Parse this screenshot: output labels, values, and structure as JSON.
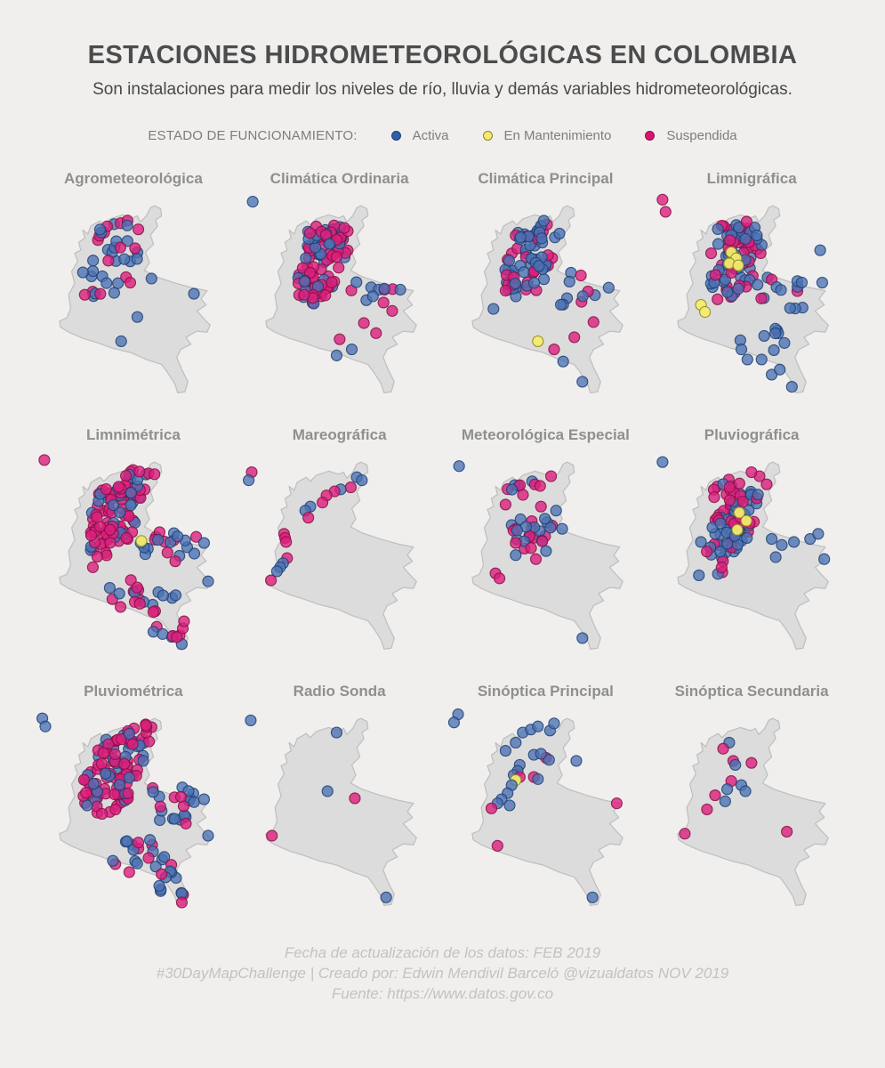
{
  "page": {
    "background": "#f0efee"
  },
  "header": {
    "title": "ESTACIONES HIDROMETEOROLÓGICAS EN COLOMBIA",
    "subtitle": "Son instalaciones para medir los niveles de río, lluvia y demás variables hidrometeorológicas."
  },
  "legend": {
    "label": "ESTADO DE FUNCIONAMIENTO:",
    "items": [
      {
        "key": "a",
        "label": "Activa",
        "color": "#2d5fa4",
        "border": "#1f3f73"
      },
      {
        "key": "m",
        "label": "En Mantenimiento",
        "color": "#f3eb6e",
        "border": "#8e851d"
      },
      {
        "key": "s",
        "label": "Suspendida",
        "color": "#dc1273",
        "border": "#861043"
      }
    ]
  },
  "status_colors": {
    "a": {
      "fill": "#4c72b4",
      "stroke": "#1f3f73",
      "opacity": 0.78
    },
    "m": {
      "fill": "#f3eb6e",
      "stroke": "#8e851d",
      "opacity": 0.95
    },
    "s": {
      "fill": "#dc1f7d",
      "stroke": "#861043",
      "opacity": 0.8
    }
  },
  "map": {
    "fill": "#dcdcdc",
    "stroke": "#bfbfbf"
  },
  "footer": {
    "lines": [
      "Fecha de actualización de los datos: FEB 2019",
      "#30DayMapChallenge | Creado por: Edwin Mendivil Barceló @vizualdatos NOV 2019",
      "Fuente: https://www.datos.gov.co"
    ]
  },
  "chart_data": {
    "type": "scatter",
    "title": "ESTACIONES HIDROMETEOROLÓGICAS EN COLOMBIA",
    "note": "Small-multiples map of Colombia; station positions in map viewBox units (0-200 x, 0-220 y). Status: a=Activa, m=En Mantenimiento, s=Suspendida. Dense regions encoded as clusters [cx,cy,rx,ry,n,probActiva,probMantenimiento,shear].",
    "legend_position": "top",
    "facets": [
      {
        "label": "Agrometeorológica",
        "clusters": [
          [
            78,
            72,
            26,
            40,
            30,
            0.62,
            0,
            -0.3
          ],
          [
            86,
            38,
            20,
            11,
            7,
            0.6,
            0,
            0
          ]
        ],
        "points": [
          [
            160,
            103,
            "a"
          ],
          [
            104,
            126,
            "a"
          ],
          [
            88,
            150,
            "a"
          ],
          [
            118,
            88,
            "a"
          ],
          [
            52,
            104,
            "s"
          ],
          [
            97,
            92,
            "s"
          ]
        ]
      },
      {
        "label": "Climática Ordinaria",
        "clusters": [
          [
            82,
            74,
            24,
            36,
            68,
            0.35,
            0,
            -0.3
          ],
          [
            88,
            44,
            22,
            12,
            20,
            0.4,
            0,
            0
          ],
          [
            70,
            104,
            17,
            16,
            16,
            0.4,
            0,
            0
          ],
          [
            132,
            104,
            26,
            16,
            10,
            0.6,
            0,
            0
          ]
        ],
        "points": [
          [
            14,
            12,
            "a"
          ],
          [
            100,
            148,
            "s"
          ],
          [
            112,
            158,
            "a"
          ],
          [
            124,
            132,
            "s"
          ],
          [
            97,
            164,
            "a"
          ],
          [
            136,
            142,
            "s"
          ],
          [
            152,
            120,
            "s"
          ],
          [
            160,
            99,
            "a"
          ]
        ]
      },
      {
        "label": "Climática Principal",
        "clusters": [
          [
            85,
            72,
            24,
            36,
            58,
            0.75,
            0,
            -0.3
          ],
          [
            90,
            42,
            24,
            12,
            18,
            0.7,
            0,
            0
          ],
          [
            122,
            100,
            28,
            18,
            10,
            0.8,
            0,
            0
          ]
        ],
        "points": [
          [
            92,
            150,
            "m"
          ],
          [
            136,
            190,
            "a"
          ],
          [
            128,
            146,
            "s"
          ],
          [
            147,
            131,
            "s"
          ],
          [
            162,
            97,
            "a"
          ],
          [
            108,
            158,
            "s"
          ],
          [
            117,
            170,
            "a"
          ],
          [
            60,
            100,
            "s"
          ],
          [
            48,
            118,
            "a"
          ]
        ]
      },
      {
        "label": "Limnigráfica",
        "clusters": [
          [
            82,
            72,
            26,
            38,
            72,
            0.62,
            0,
            -0.3
          ],
          [
            88,
            42,
            22,
            12,
            16,
            0.55,
            0,
            0
          ],
          [
            132,
            104,
            32,
            20,
            14,
            0.85,
            0,
            0
          ],
          [
            106,
            148,
            28,
            14,
            8,
            0.7,
            0,
            0
          ]
        ],
        "points": [
          [
            80,
            62,
            "m"
          ],
          [
            85,
            68,
            "m"
          ],
          [
            78,
            73,
            "m"
          ],
          [
            87,
            75,
            "m"
          ],
          [
            50,
            114,
            "m"
          ],
          [
            54,
            121,
            "m"
          ],
          [
            12,
            10,
            "s"
          ],
          [
            15,
            22,
            "s"
          ],
          [
            120,
            183,
            "a"
          ],
          [
            96,
            168,
            "a"
          ],
          [
            168,
            60,
            "a"
          ],
          [
            170,
            92,
            "a"
          ],
          [
            110,
            168,
            "a"
          ],
          [
            128,
            178,
            "a"
          ],
          [
            140,
            195,
            "a"
          ],
          [
            90,
            158,
            "a"
          ]
        ]
      },
      {
        "label": "Limnimétrica",
        "clusters": [
          [
            80,
            70,
            26,
            40,
            82,
            0.3,
            0,
            -0.3
          ],
          [
            102,
            36,
            20,
            13,
            16,
            0.35,
            0,
            0
          ],
          [
            134,
            98,
            32,
            17,
            20,
            0.55,
            0,
            0
          ],
          [
            108,
            148,
            38,
            18,
            20,
            0.5,
            0,
            0
          ],
          [
            136,
            180,
            17,
            13,
            8,
            0.6,
            0,
            0
          ]
        ],
        "points": [
          [
            12,
            14,
            "s"
          ],
          [
            108,
            94,
            "m"
          ],
          [
            121,
            28,
            "s"
          ],
          [
            148,
            196,
            "a"
          ],
          [
            143,
            189,
            "s"
          ],
          [
            170,
            96,
            "a"
          ],
          [
            174,
            134,
            "a"
          ],
          [
            60,
            120,
            "s"
          ]
        ]
      },
      {
        "label": "Mareográfica",
        "clusters": [],
        "points": [
          [
            13,
            26,
            "s"
          ],
          [
            10,
            34,
            "a"
          ],
          [
            117,
            31,
            "a"
          ],
          [
            122,
            34,
            "a"
          ],
          [
            111,
            41,
            "s"
          ],
          [
            101,
            43,
            "a"
          ],
          [
            95,
            45,
            "s"
          ],
          [
            87,
            49,
            "s"
          ],
          [
            83,
            56,
            "s"
          ],
          [
            71,
            60,
            "a"
          ],
          [
            66,
            64,
            "a"
          ],
          [
            69,
            71,
            "s"
          ],
          [
            45,
            87,
            "s"
          ],
          [
            46,
            91,
            "s"
          ],
          [
            47,
            95,
            "s"
          ],
          [
            48,
            111,
            "s"
          ],
          [
            44,
            116,
            "a"
          ],
          [
            41,
            120,
            "a"
          ],
          [
            38,
            124,
            "a"
          ],
          [
            32,
            133,
            "s"
          ]
        ]
      },
      {
        "label": "Meteorológica Especial",
        "clusters": [
          [
            84,
            84,
            22,
            18,
            26,
            0.5,
            0,
            -0.2
          ],
          [
            80,
            44,
            20,
            12,
            9,
            0.55,
            0,
            0
          ]
        ],
        "points": [
          [
            14,
            20,
            "a"
          ],
          [
            105,
            30,
            "s"
          ],
          [
            95,
            60,
            "s"
          ],
          [
            110,
            64,
            "a"
          ],
          [
            116,
            82,
            "a"
          ],
          [
            60,
            58,
            "s"
          ],
          [
            50,
            126,
            "s"
          ],
          [
            54,
            131,
            "s"
          ],
          [
            136,
            190,
            "a"
          ],
          [
            100,
            104,
            "a"
          ],
          [
            70,
            108,
            "a"
          ],
          [
            90,
            112,
            "s"
          ]
        ]
      },
      {
        "label": "Pluviográfica",
        "clusters": [
          [
            82,
            78,
            20,
            30,
            52,
            0.75,
            0,
            -0.3
          ],
          [
            76,
            44,
            18,
            12,
            14,
            0.3,
            0,
            0
          ],
          [
            96,
            54,
            15,
            10,
            10,
            0.45,
            0,
            0
          ],
          [
            66,
            112,
            15,
            15,
            10,
            0.5,
            0,
            0
          ]
        ],
        "points": [
          [
            88,
            66,
            "m"
          ],
          [
            95,
            74,
            "m"
          ],
          [
            86,
            83,
            "m"
          ],
          [
            120,
            92,
            "a"
          ],
          [
            130,
            98,
            "a"
          ],
          [
            142,
            95,
            "a"
          ],
          [
            158,
            92,
            "a"
          ],
          [
            166,
            87,
            "a"
          ],
          [
            124,
            110,
            "a"
          ],
          [
            50,
            95,
            "a"
          ],
          [
            48,
            128,
            "a"
          ],
          [
            108,
            30,
            "s"
          ],
          [
            100,
            26,
            "s"
          ],
          [
            115,
            38,
            "s"
          ],
          [
            12,
            16,
            "a"
          ],
          [
            172,
            112,
            "a"
          ]
        ]
      },
      {
        "label": "Pluviométrica",
        "clusters": [
          [
            80,
            70,
            28,
            42,
            95,
            0.25,
            0,
            -0.3
          ],
          [
            108,
            32,
            18,
            12,
            15,
            0.2,
            0,
            0
          ],
          [
            134,
            100,
            33,
            18,
            20,
            0.75,
            0,
            0
          ],
          [
            110,
            150,
            38,
            18,
            18,
            0.55,
            0,
            0
          ],
          [
            138,
            180,
            18,
            14,
            10,
            0.6,
            0,
            0
          ]
        ],
        "points": [
          [
            10,
            16,
            "a"
          ],
          [
            13,
            24,
            "a"
          ],
          [
            148,
            198,
            "s"
          ],
          [
            128,
            170,
            "s"
          ],
          [
            170,
            96,
            "a"
          ],
          [
            174,
            132,
            "a"
          ],
          [
            152,
            120,
            "s"
          ],
          [
            96,
            168,
            "s"
          ]
        ]
      },
      {
        "label": "Radio Sonda",
        "clusters": [],
        "points": [
          [
            12,
            18,
            "a"
          ],
          [
            97,
            30,
            "a"
          ],
          [
            88,
            88,
            "a"
          ],
          [
            115,
            95,
            "s"
          ],
          [
            33,
            132,
            "s"
          ],
          [
            146,
            193,
            "a"
          ]
        ]
      },
      {
        "label": "Sinóptica Principal",
        "clusters": [],
        "points": [
          [
            13,
            12,
            "a"
          ],
          [
            9,
            20,
            "a"
          ],
          [
            70,
            40,
            "a"
          ],
          [
            77,
            30,
            "a"
          ],
          [
            85,
            27,
            "a"
          ],
          [
            92,
            24,
            "a"
          ],
          [
            104,
            28,
            "a"
          ],
          [
            108,
            21,
            "a"
          ],
          [
            60,
            48,
            "a"
          ],
          [
            88,
            52,
            "a"
          ],
          [
            100,
            55,
            "s"
          ],
          [
            103,
            57,
            "a"
          ],
          [
            95,
            51,
            "a"
          ],
          [
            74,
            62,
            "a"
          ],
          [
            72,
            68,
            "a"
          ],
          [
            68,
            72,
            "a"
          ],
          [
            74,
            74,
            "s"
          ],
          [
            70,
            77,
            "m"
          ],
          [
            88,
            74,
            "s"
          ],
          [
            92,
            76,
            "a"
          ],
          [
            66,
            82,
            "a"
          ],
          [
            62,
            90,
            "a"
          ],
          [
            56,
            96,
            "a"
          ],
          [
            52,
            100,
            "a"
          ],
          [
            64,
            102,
            "a"
          ],
          [
            46,
            105,
            "s"
          ],
          [
            170,
            100,
            "s"
          ],
          [
            130,
            58,
            "a"
          ],
          [
            146,
            193,
            "a"
          ],
          [
            52,
            142,
            "s"
          ]
        ]
      },
      {
        "label": "Sinóptica Secundaria",
        "clusters": [],
        "points": [
          [
            78,
            40,
            "a"
          ],
          [
            72,
            46,
            "s"
          ],
          [
            82,
            58,
            "s"
          ],
          [
            84,
            62,
            "a"
          ],
          [
            100,
            60,
            "s"
          ],
          [
            80,
            78,
            "s"
          ],
          [
            90,
            82,
            "a"
          ],
          [
            76,
            86,
            "a"
          ],
          [
            94,
            88,
            "a"
          ],
          [
            64,
            92,
            "s"
          ],
          [
            74,
            98,
            "a"
          ],
          [
            56,
            106,
            "s"
          ],
          [
            34,
            130,
            "s"
          ],
          [
            135,
            128,
            "s"
          ]
        ]
      }
    ]
  }
}
